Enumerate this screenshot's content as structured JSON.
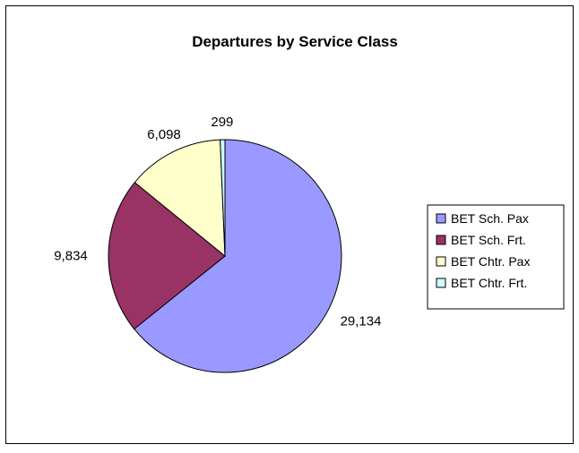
{
  "chart_data": {
    "type": "pie",
    "title": "Departures by Service Class",
    "categories": [
      "BET Sch. Pax",
      "BET Sch. Frt.",
      "BET Chtr. Pax",
      "BET Chtr. Frt."
    ],
    "values": [
      29134,
      9834,
      6098,
      299
    ],
    "data_labels": [
      "29,134",
      "9,834",
      "6,098",
      "299"
    ],
    "colors": [
      "#9999FF",
      "#993366",
      "#FFFFCC",
      "#CCFFFF"
    ],
    "legend": {
      "position": "right",
      "entries": [
        "BET Sch. Pax",
        "BET Sch. Frt.",
        "BET Chtr. Pax",
        "BET Chtr. Frt."
      ]
    }
  }
}
